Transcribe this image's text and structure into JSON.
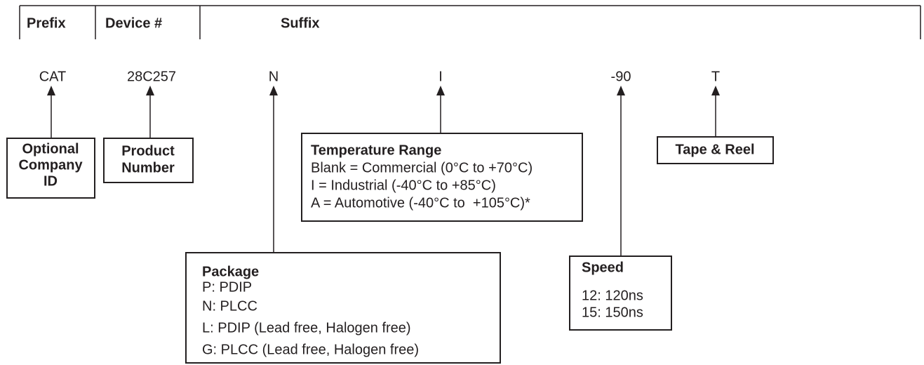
{
  "header": {
    "columns": [
      "Prefix",
      "Device #",
      "Suffix"
    ]
  },
  "codes": [
    "CAT",
    "28C257",
    "N",
    "I",
    "-90",
    "T"
  ],
  "boxes": {
    "company": {
      "title": [
        "Optional",
        "Company",
        "ID"
      ]
    },
    "product": {
      "title": [
        "Product",
        "Number"
      ]
    },
    "temperature": {
      "title": "Temperature Range",
      "lines": [
        "Blank = Commercial (0°C to +70°C)",
        "I = Industrial (-40°C to +85°C)",
        "A = Automotive (-40°C to  +105°C)*"
      ]
    },
    "tape": {
      "title": "Tape & Reel"
    },
    "package": {
      "title": "Package",
      "lines": [
        "P: PDIP",
        "N: PLCC",
        "L: PDIP (Lead free, Halogen free)",
        "G: PLCC (Lead free, Halogen free)"
      ]
    },
    "speed": {
      "title": "Speed",
      "lines": [
        "12: 120ns",
        "15: 150ns"
      ]
    }
  }
}
